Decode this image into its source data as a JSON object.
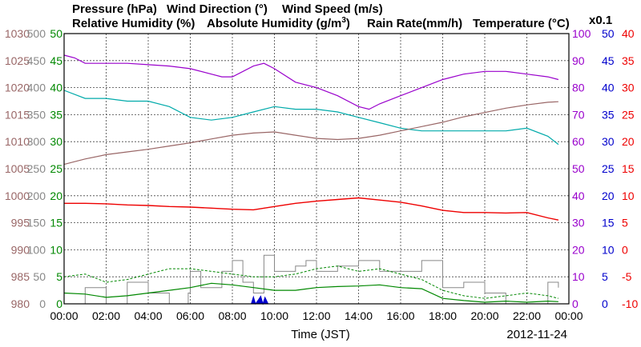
{
  "chart_data": {
    "type": "line",
    "date_label": "2012-11-24",
    "xlabel": "Time (JST)",
    "x_ticks": [
      "00:00",
      "02:00",
      "04:00",
      "06:00",
      "08:00",
      "10:00",
      "12:00",
      "14:00",
      "16:00",
      "18:00",
      "20:00",
      "22:00",
      "00:00"
    ],
    "x_range_hours": [
      0,
      24
    ],
    "grid": true,
    "colors": {
      "pressure": "#996666",
      "wind_direction": "#888888",
      "wind_speed": "#008800",
      "relative_humidity": "#9900cc",
      "absolute_humidity": "#00aaaa",
      "rain_rate": "#0000cc",
      "temperature": "#ee0000"
    },
    "titles": {
      "pressure": "Pressure (hPa)",
      "wind_direction": "Wind Direction (°)",
      "wind_speed": "Wind Speed (m/s)",
      "relative_humidity": "Relative Humidity (%)",
      "absolute_humidity_pre": "Absolute Humidity (g/m",
      "absolute_humidity_sup": "3",
      "absolute_humidity_post": ")",
      "rain_rate": "Rain Rate(mm/h)",
      "temperature": "Temperature (°C)",
      "scale_note": "x0.1"
    },
    "axes": {
      "pressure": {
        "ylim": [
          980,
          1030
        ],
        "ticks": [
          "980",
          "985",
          "990",
          "995",
          "1000",
          "1005",
          "1010",
          "1015",
          "1020",
          "1025",
          "1030"
        ]
      },
      "wind_direction": {
        "ylim": [
          0,
          500
        ],
        "ticks": [
          "0",
          "50",
          "100",
          "150",
          "200",
          "250",
          "300",
          "350",
          "400",
          "450",
          "500"
        ]
      },
      "wind_speed": {
        "ylim": [
          0,
          50
        ],
        "ticks": [
          "0",
          "5",
          "10",
          "15",
          "20",
          "25",
          "30",
          "35",
          "40",
          "45",
          "50"
        ]
      },
      "relative_humidity": {
        "ylim": [
          0,
          100
        ],
        "ticks": [
          "0",
          "10",
          "20",
          "30",
          "40",
          "50",
          "60",
          "70",
          "80",
          "90",
          "100"
        ]
      },
      "rain_rate": {
        "ylim": [
          0,
          50
        ],
        "ticks": [
          "0",
          "5",
          "10",
          "15",
          "20",
          "25",
          "30",
          "35",
          "40",
          "45",
          "50"
        ]
      },
      "temperature": {
        "ylim": [
          -10,
          40
        ],
        "ticks": [
          "-10",
          "-5",
          "0",
          "5",
          "10",
          "15",
          "20",
          "25",
          "30",
          "35",
          "40"
        ]
      }
    },
    "series": [
      {
        "name": "Pressure (hPa)",
        "axis": "pressure",
        "x": [
          0,
          1,
          2,
          3,
          4,
          5,
          6,
          7,
          8,
          9,
          10,
          11,
          12,
          13,
          14,
          15,
          16,
          17,
          18,
          19,
          20,
          21,
          22,
          23,
          23.5
        ],
        "y": [
          1005.8,
          1006.8,
          1007.6,
          1008.1,
          1008.6,
          1009.2,
          1009.8,
          1010.5,
          1011.2,
          1011.6,
          1011.8,
          1011.2,
          1010.6,
          1010.4,
          1010.6,
          1011.2,
          1012.0,
          1012.8,
          1013.6,
          1014.6,
          1015.4,
          1016.2,
          1016.8,
          1017.3,
          1017.4
        ]
      },
      {
        "name": "Relative Humidity (%)",
        "axis": "relative_humidity",
        "x": [
          0,
          0.5,
          1,
          2,
          3,
          4,
          5,
          6,
          7,
          7.5,
          8,
          9,
          9.5,
          10,
          11,
          12,
          13,
          14,
          14.5,
          15,
          16,
          17,
          18,
          19,
          20,
          21,
          22,
          23,
          23.5
        ],
        "y": [
          92,
          91,
          89,
          89,
          89,
          88.5,
          88,
          87,
          85,
          84,
          84,
          88,
          89,
          87,
          82,
          80,
          77,
          73,
          72,
          74,
          77,
          80,
          83,
          85,
          86,
          86,
          85,
          84,
          83
        ]
      },
      {
        "name": "Absolute Humidity (g/m3)",
        "axis": "relative_humidity",
        "x": [
          0,
          1,
          2,
          3,
          4,
          5,
          6,
          7,
          8,
          9,
          10,
          11,
          12,
          13,
          14,
          15,
          16,
          17,
          18,
          19,
          20,
          21,
          22,
          23,
          23.5
        ],
        "y": [
          79,
          76,
          76,
          75,
          75,
          73,
          69,
          68,
          69,
          71,
          73,
          72,
          72,
          71,
          69,
          67,
          65,
          64,
          64,
          64,
          64,
          64,
          65,
          62,
          59
        ]
      },
      {
        "name": "Temperature (°C)",
        "axis": "temperature",
        "x": [
          0,
          1,
          2,
          3,
          4,
          5,
          6,
          7,
          8,
          9,
          10,
          11,
          12,
          13,
          14,
          15,
          16,
          17,
          18,
          19,
          20,
          21,
          22,
          23,
          23.5
        ],
        "y": [
          8.6,
          8.6,
          8.5,
          8.3,
          8.2,
          8.0,
          7.9,
          7.7,
          7.5,
          7.4,
          8.0,
          8.6,
          9.0,
          9.3,
          9.6,
          9.2,
          8.8,
          8.1,
          7.3,
          6.9,
          6.9,
          6.8,
          6.9,
          5.9,
          5.5
        ]
      },
      {
        "name": "Wind Speed (m/s)",
        "axis": "wind_speed",
        "x": [
          0,
          1,
          2,
          3,
          4,
          5,
          6,
          7,
          8,
          9,
          10,
          11,
          12,
          13,
          14,
          15,
          16,
          17,
          18,
          19,
          20,
          21,
          22,
          23,
          23.5
        ],
        "y": [
          2.0,
          1.8,
          1.2,
          1.5,
          2.0,
          2.5,
          3.0,
          3.8,
          3.5,
          3.0,
          2.5,
          2.5,
          3.0,
          3.2,
          3.3,
          3.5,
          3.0,
          2.8,
          1.0,
          0.6,
          0.3,
          0.5,
          0.3,
          0.5,
          0.4
        ]
      },
      {
        "name": "Wind Speed gust (m/s)",
        "axis": "wind_speed",
        "x": [
          0,
          1,
          2,
          3,
          4,
          5,
          6,
          7,
          8,
          9,
          10,
          11,
          12,
          13,
          14,
          15,
          16,
          17,
          18,
          19,
          20,
          21,
          22,
          23,
          23.5
        ],
        "y": [
          5.0,
          5.5,
          4.0,
          4.5,
          5.5,
          6.5,
          6.5,
          6.0,
          5.5,
          5.0,
          5.0,
          5.5,
          6.5,
          7.0,
          6.0,
          6.5,
          5.5,
          4.5,
          2.5,
          1.5,
          1.0,
          1.5,
          2.0,
          1.5,
          1.0
        ]
      },
      {
        "name": "Wind Direction (°)",
        "axis": "wind_direction",
        "x": [
          0,
          1,
          2,
          3,
          4,
          5,
          5.9,
          6,
          6.5,
          7,
          7.5,
          8,
          8.5,
          9,
          9.5,
          10,
          11,
          11.5,
          12,
          13,
          14,
          15,
          16,
          17,
          18,
          19,
          20,
          21,
          22,
          23,
          23.5
        ],
        "y": [
          0,
          30,
          0,
          40,
          20,
          0,
          20,
          60,
          30,
          30,
          60,
          80,
          40,
          20,
          90,
          60,
          70,
          80,
          60,
          70,
          80,
          60,
          60,
          80,
          30,
          40,
          20,
          0,
          0,
          40,
          30
        ]
      },
      {
        "name": "Rain Rate(mm/h)",
        "axis": "rain_rate",
        "x": [
          8.9,
          9.0,
          9.1,
          9.25,
          9.35,
          9.45,
          9.55,
          9.7
        ],
        "y": [
          0,
          1.3,
          0,
          0.8,
          1.4,
          0,
          1.2,
          0
        ]
      }
    ]
  }
}
